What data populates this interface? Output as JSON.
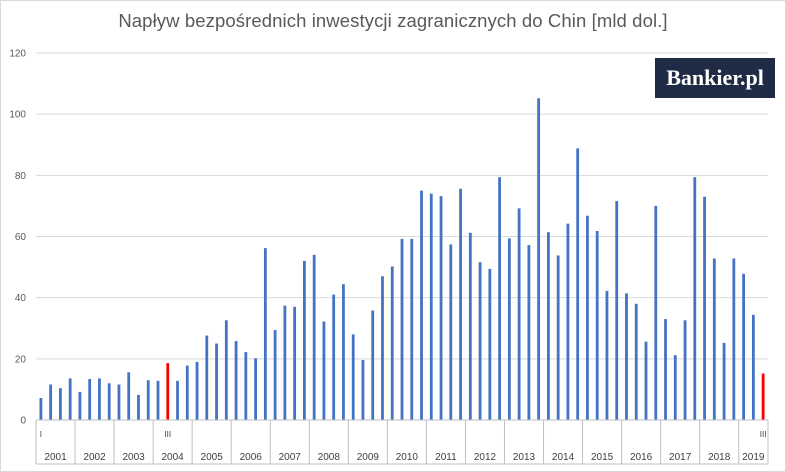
{
  "chart_data": {
    "type": "bar",
    "title": "Napływ bezpośrednich inwestycji zagranicznych do Chin [mld dol.]",
    "ylim": [
      0,
      120
    ],
    "y_ticks": [
      "0",
      "20",
      "40",
      "60",
      "80",
      "100",
      "120"
    ],
    "grid": true,
    "year_labels": [
      "2001",
      "2002",
      "2003",
      "2004",
      "2005",
      "2006",
      "2007",
      "2008",
      "2009",
      "2010",
      "2011",
      "2012",
      "2013",
      "2014",
      "2015",
      "2016",
      "2017",
      "2018",
      "2019"
    ],
    "quarter_marks": [
      "I",
      "III",
      "III"
    ],
    "values": [
      7.2,
      11.6,
      10.4,
      13.6,
      9.2,
      13.4,
      13.6,
      12.0,
      11.6,
      15.6,
      8.2,
      13.0,
      12.8,
      18.6,
      12.8,
      17.8,
      19.0,
      27.6,
      25.0,
      32.6,
      25.8,
      22.2,
      20.2,
      56.2,
      29.4,
      37.4,
      37.0,
      52.0,
      54.0,
      32.2,
      41.0,
      44.4,
      28.0,
      19.6,
      35.8,
      47.0,
      50.2,
      59.2,
      59.2,
      75.0,
      74.0,
      73.2,
      57.4,
      75.6,
      61.2,
      51.6,
      49.4,
      79.4,
      59.4,
      69.2,
      57.2,
      105.2,
      61.4,
      53.8,
      64.2,
      88.8,
      66.8,
      61.8,
      42.2,
      71.6,
      41.4,
      38.0,
      25.6,
      70.0,
      33.0,
      21.2,
      32.6,
      79.4,
      73.0,
      52.8,
      25.2,
      52.8,
      47.8,
      34.4,
      15.2
    ],
    "highlighted_indices": [
      13,
      74
    ],
    "colors": {
      "bar": "#4472c4",
      "highlight": "#ff0000",
      "grid": "#d9d9d9",
      "axis": "#bfbfbf"
    }
  },
  "logo": {
    "text": "Bankier.pl"
  }
}
